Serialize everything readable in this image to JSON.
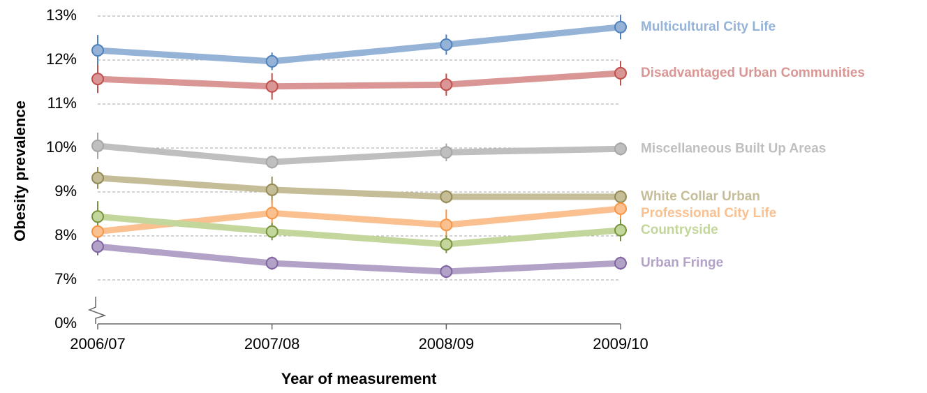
{
  "chart_data": {
    "type": "line",
    "y_label": "Obesity prevalence",
    "x_label": "Year of measurement",
    "categories": [
      "2006/07",
      "2007/08",
      "2008/09",
      "2009/10"
    ],
    "ylim": [
      0,
      13
    ],
    "axis_break": true,
    "yticks": [
      {
        "value": 0,
        "label": "0%"
      },
      {
        "value": 7,
        "label": "7%"
      },
      {
        "value": 8,
        "label": "8%"
      },
      {
        "value": 9,
        "label": "9%"
      },
      {
        "value": 10,
        "label": "10%"
      },
      {
        "value": 11,
        "label": "11%"
      },
      {
        "value": 12,
        "label": "12%"
      },
      {
        "value": 13,
        "label": "13%"
      }
    ],
    "grid": true,
    "series": [
      {
        "name": "Multicultural City Life",
        "color": "#95b3d7",
        "marker_color": "#4f81bd",
        "values": [
          12.22,
          11.97,
          12.35,
          12.75
        ],
        "errors": [
          0.35,
          0.2,
          0.23,
          0.28
        ]
      },
      {
        "name": "Disadvantaged Urban Communities",
        "color": "#d99694",
        "marker_color": "#c0504d",
        "values": [
          11.57,
          11.4,
          11.44,
          11.7
        ],
        "errors": [
          0.32,
          0.3,
          0.25,
          0.28
        ]
      },
      {
        "name": "Miscellaneous Built Up Areas",
        "color": "#bfbfbf",
        "marker_color": "#a6a6a6",
        "values": [
          10.05,
          9.68,
          9.9,
          9.98
        ],
        "errors": [
          0.3,
          0.15,
          0.2,
          0.15
        ]
      },
      {
        "name": "White Collar Urban",
        "color": "#c4bd97",
        "marker_color": "#948a54",
        "values": [
          9.32,
          9.05,
          8.89,
          8.89
        ],
        "errors": [
          0.25,
          0.3,
          0.15,
          0.15
        ]
      },
      {
        "name": "Professional City Life",
        "color": "#fac090",
        "marker_color": "#f79646",
        "values": [
          8.1,
          8.52,
          8.25,
          8.62
        ],
        "errors": [
          0.2,
          0.3,
          0.35,
          0.35
        ]
      },
      {
        "name": "Countryside",
        "color": "#c3d69b",
        "marker_color": "#77933c",
        "values": [
          8.44,
          8.1,
          7.81,
          8.13
        ],
        "errors": [
          0.35,
          0.2,
          0.2,
          0.25
        ]
      },
      {
        "name": "Urban Fringe",
        "color": "#b3a2c7",
        "marker_color": "#8064a2",
        "values": [
          7.76,
          7.38,
          7.19,
          7.38
        ],
        "errors": [
          0.2,
          0.15,
          0.15,
          0.15
        ]
      }
    ]
  }
}
